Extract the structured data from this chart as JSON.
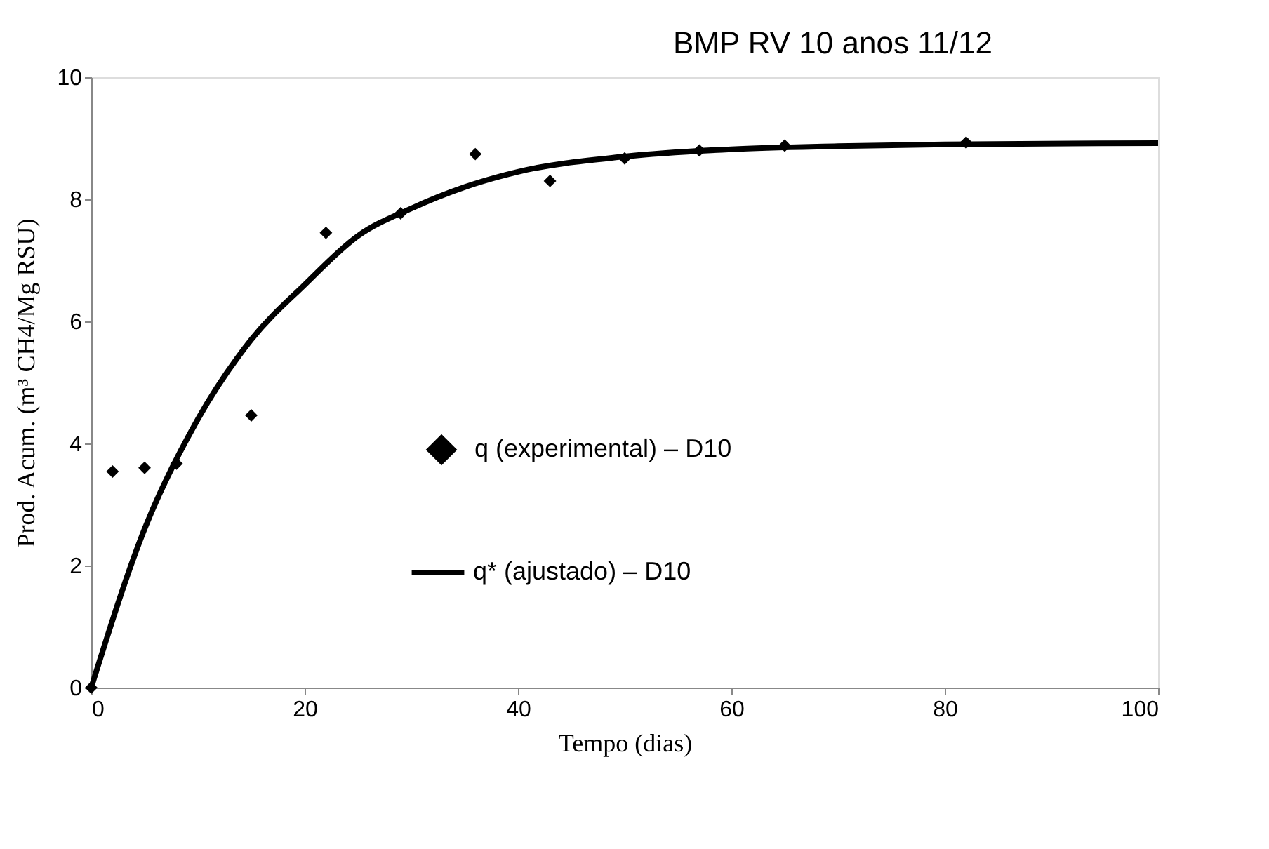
{
  "chart_data": {
    "type": "scatter",
    "title": "BMP RV 10 anos 11/12",
    "xlabel": "Tempo (dias)",
    "ylabel": "Prod. Acum. (m³ CH4/Mg RSU)",
    "xlim": [
      0,
      100
    ],
    "xticks": [
      0,
      20,
      40,
      60,
      80,
      100
    ],
    "ylim": [
      0,
      10
    ],
    "yticks": [
      0,
      2,
      4,
      6,
      8,
      10
    ],
    "grid": false,
    "legend": "bottom",
    "marker": "diamond",
    "series": [
      {
        "name": "q (experimental) – D10",
        "color": "#000000",
        "x": [
          0,
          2,
          5,
          8,
          15,
          22,
          29,
          36,
          43,
          50,
          57,
          65,
          82
        ],
        "values": [
          0,
          3.54,
          3.6,
          3.67,
          4.46,
          7.45,
          7.77,
          8.74,
          8.3,
          8.67,
          8.8,
          8.88,
          8.93
        ]
      },
      {
        "name": "q* (ajustado) – D10",
        "type": "line",
        "color": "#000000",
        "line_style": "solid",
        "marker": "none",
        "x": [
          0,
          5,
          10,
          15,
          20,
          25,
          30,
          35,
          40,
          50,
          60,
          70,
          80,
          100
        ],
        "values": [
          0,
          2.6,
          4.4,
          5.7,
          6.6,
          7.4,
          7.85,
          8.2,
          8.45,
          8.7,
          8.82,
          8.87,
          8.9,
          8.92
        ]
      }
    ]
  }
}
